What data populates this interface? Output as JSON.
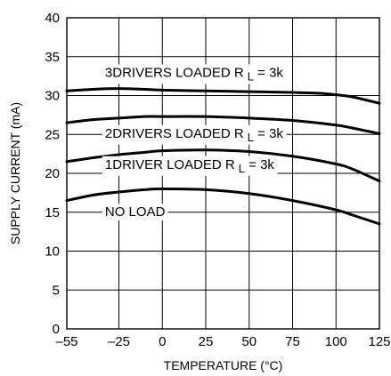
{
  "chart_data": {
    "type": "line",
    "xlabel": "TEMPERATURE (°C)",
    "ylabel": "SUPPLY CURRENT (mA)",
    "xlim": [
      -55,
      125
    ],
    "ylim": [
      0,
      40
    ],
    "xticks": [
      -55,
      -25,
      0,
      25,
      50,
      75,
      100,
      125
    ],
    "xtick_labels": [
      "–55",
      "–25",
      "0",
      "25",
      "50",
      "75",
      "100",
      "125"
    ],
    "yticks": [
      0,
      5,
      10,
      15,
      20,
      25,
      30,
      35,
      40
    ],
    "ytick_labels": [
      "0",
      "5",
      "10",
      "15",
      "20",
      "25",
      "30",
      "35",
      "40"
    ],
    "grid": true,
    "series": [
      {
        "label_text": "3DRIVERS LOADED R",
        "label_sub": "L",
        "label_tail": " = 3k",
        "label_at": {
          "x": -33,
          "y": 32.4
        },
        "x": [
          -55,
          -40,
          -25,
          -10,
          0,
          25,
          50,
          75,
          90,
          100,
          110,
          125
        ],
        "y": [
          30.6,
          30.8,
          30.9,
          30.8,
          30.7,
          30.6,
          30.5,
          30.4,
          30.3,
          30.1,
          29.8,
          29.0
        ]
      },
      {
        "label_text": "2DRIVERS LOADED R",
        "label_sub": "L",
        "label_tail": " = 3k",
        "label_at": {
          "x": -33,
          "y": 24.6
        },
        "x": [
          -55,
          -40,
          -25,
          -10,
          0,
          25,
          50,
          75,
          100,
          110,
          125
        ],
        "y": [
          26.5,
          26.9,
          27.1,
          27.3,
          27.3,
          27.3,
          27.1,
          26.8,
          26.2,
          25.8,
          25.1
        ]
      },
      {
        "label_text": "1DRIVER LOADED R",
        "label_sub": "L",
        "label_tail": " = 3k",
        "label_at": {
          "x": -33,
          "y": 20.6
        },
        "x": [
          -55,
          -40,
          -25,
          -10,
          0,
          25,
          50,
          75,
          100,
          110,
          125
        ],
        "y": [
          21.5,
          22.0,
          22.4,
          22.7,
          22.9,
          23.0,
          22.8,
          22.2,
          21.2,
          20.5,
          19.0
        ]
      },
      {
        "label_text": "NO LOAD",
        "label_sub": "",
        "label_tail": "",
        "label_at": {
          "x": -33,
          "y": 14.5
        },
        "x": [
          -55,
          -40,
          -25,
          -10,
          0,
          25,
          50,
          75,
          100,
          110,
          125
        ],
        "y": [
          16.5,
          17.2,
          17.6,
          17.9,
          18.0,
          17.9,
          17.4,
          16.5,
          15.3,
          14.6,
          13.5
        ]
      }
    ]
  }
}
